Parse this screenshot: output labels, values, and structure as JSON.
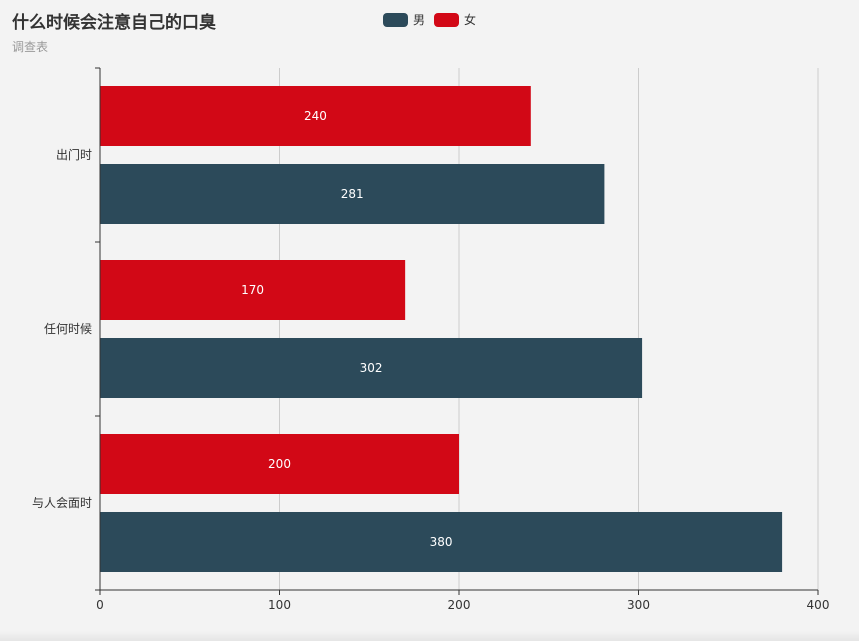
{
  "title": "什么时候会注意自己的口臭",
  "subtitle": "调查表",
  "chart_data": {
    "type": "bar",
    "orientation": "horizontal",
    "categories": [
      "出门时",
      "任何时候",
      "与人会面时"
    ],
    "series": [
      {
        "name": "男",
        "values": [
          281,
          302,
          380
        ],
        "color": "#2c4a5a"
      },
      {
        "name": "女",
        "values": [
          240,
          170,
          200
        ],
        "color": "#d20816"
      }
    ],
    "xlim": [
      0,
      400
    ],
    "xticks": [
      0,
      100,
      200,
      300,
      400
    ],
    "grid": true,
    "legend_position": "top-center",
    "data_labels": true
  },
  "colors": {
    "background": "#f3f3f3",
    "grid": "#cccccc",
    "axis": "#333333",
    "label_text": "#ffffff"
  }
}
